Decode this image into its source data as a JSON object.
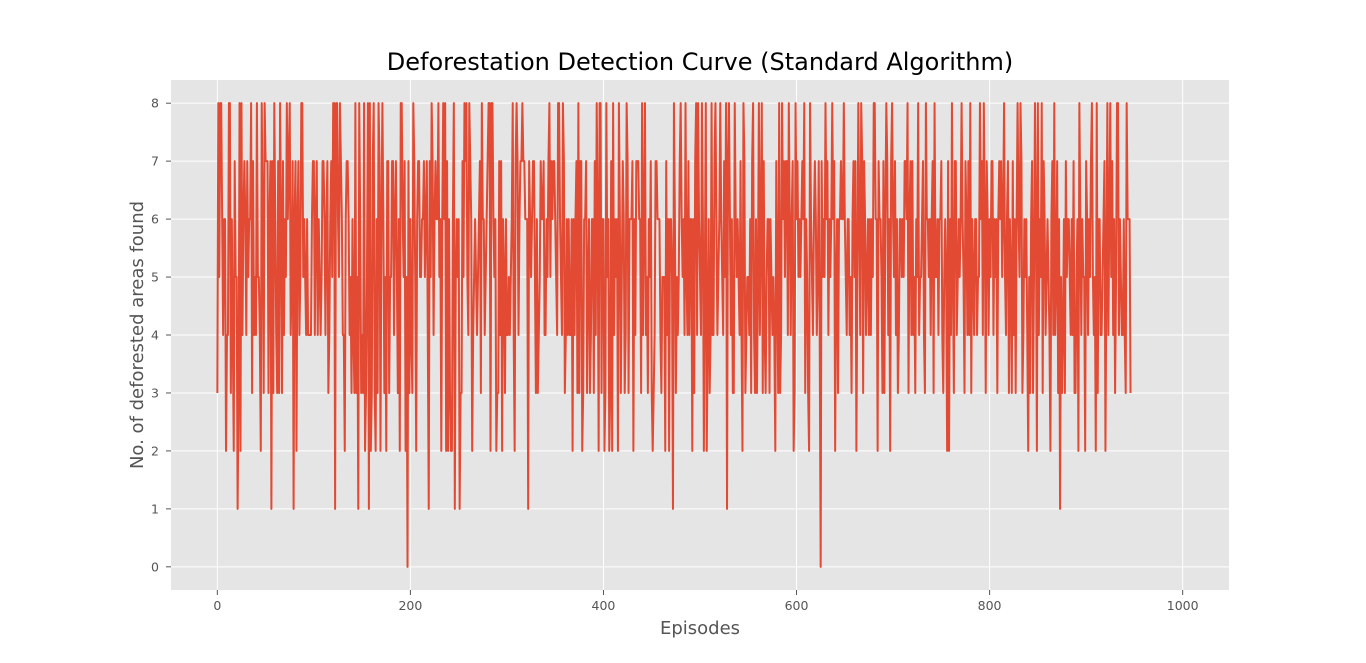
{
  "chart_data": {
    "type": "line",
    "title": "Deforestation Detection Curve (Standard Algorithm)",
    "xlabel": "Episodes",
    "ylabel": "No. of deforested areas found",
    "xlim": [
      -48,
      1048
    ],
    "ylim": [
      -0.4,
      8.4
    ],
    "xticks": [
      0,
      200,
      400,
      600,
      800,
      1000
    ],
    "xtick_labels": [
      "0",
      "200",
      "400",
      "600",
      "800",
      "1000"
    ],
    "yticks": [
      0,
      1,
      2,
      3,
      4,
      5,
      6,
      7,
      8
    ],
    "ytick_labels": [
      "0",
      "1",
      "2",
      "3",
      "4",
      "5",
      "6",
      "7",
      "8"
    ],
    "grid": true,
    "style": "ggplot",
    "series": [
      {
        "color": "#e24a33",
        "x_start": 0,
        "x_step": 1,
        "values": [
          3,
          8,
          5,
          8,
          8,
          6,
          4,
          6,
          6,
          2,
          4,
          4,
          8,
          8,
          3,
          6,
          4,
          2,
          7,
          5,
          5,
          1,
          3,
          8,
          2,
          8,
          4,
          6,
          7,
          6,
          4,
          7,
          5,
          6,
          6,
          8,
          3,
          7,
          4,
          5,
          4,
          8,
          5,
          5,
          4,
          2,
          8,
          6,
          3,
          8,
          7,
          7,
          7,
          3,
          6,
          7,
          1,
          7,
          3,
          8,
          6,
          4,
          3,
          7,
          3,
          8,
          6,
          3,
          7,
          4,
          6,
          5,
          8,
          6,
          7,
          8,
          4,
          5,
          7,
          1,
          6,
          7,
          2,
          6,
          7,
          4,
          5,
          8,
          8,
          5,
          6,
          5,
          4,
          6,
          4,
          4,
          4,
          4,
          6,
          7,
          7,
          4,
          6,
          7,
          4,
          6,
          5,
          4,
          5,
          7,
          7,
          6,
          4,
          6,
          7,
          3,
          4,
          6,
          7,
          5,
          8,
          8,
          1,
          8,
          8,
          6,
          5,
          8,
          7,
          6,
          4,
          4,
          2,
          6,
          7,
          7,
          6,
          4,
          5,
          3,
          6,
          4,
          3,
          8,
          3,
          5,
          1,
          8,
          6,
          3,
          4,
          3,
          8,
          2,
          3,
          5,
          8,
          1,
          8,
          2,
          3,
          7,
          8,
          3,
          2,
          6,
          3,
          8,
          7,
          2,
          6,
          8,
          6,
          3,
          5,
          2,
          7,
          7,
          3,
          5,
          5,
          7,
          7,
          4,
          6,
          7,
          5,
          3,
          6,
          2,
          8,
          8,
          6,
          5,
          7,
          2,
          5,
          0,
          7,
          3,
          6,
          4,
          3,
          8,
          7,
          5,
          2,
          6,
          7,
          7,
          5,
          5,
          6,
          6,
          7,
          5,
          6,
          7,
          4,
          1,
          7,
          5,
          8,
          7,
          4,
          6,
          7,
          6,
          6,
          8,
          5,
          6,
          2,
          6,
          8,
          6,
          8,
          2,
          7,
          2,
          6,
          3,
          2,
          2,
          6,
          8,
          1,
          5,
          6,
          5,
          6,
          1,
          3,
          3,
          7,
          5,
          8,
          7,
          8,
          5,
          4,
          8,
          7,
          6,
          2,
          4,
          5,
          6,
          5,
          4,
          5,
          6,
          7,
          3,
          8,
          6,
          6,
          4,
          5,
          6,
          7,
          8,
          8,
          2,
          8,
          8,
          6,
          5,
          6,
          2,
          3,
          3,
          7,
          4,
          7,
          2,
          6,
          5,
          3,
          6,
          4,
          4,
          5,
          4,
          5,
          6,
          8,
          4,
          2,
          7,
          8,
          7,
          4,
          6,
          7,
          7,
          8,
          7,
          7,
          6,
          6,
          6,
          1,
          7,
          6,
          5,
          6,
          7,
          7,
          5,
          3,
          6,
          3,
          4,
          5,
          7,
          6,
          6,
          7,
          4,
          4,
          6,
          5,
          7,
          8,
          5,
          7,
          6,
          7,
          7,
          6,
          5,
          4,
          8,
          8,
          6,
          5,
          4,
          8,
          7,
          3,
          4,
          6,
          4,
          6,
          4,
          4,
          6,
          2,
          6,
          4,
          6,
          7,
          3,
          8,
          3,
          7,
          7,
          2,
          3,
          6,
          6,
          7,
          3,
          5,
          6,
          3,
          4,
          6,
          6,
          3,
          7,
          4,
          8,
          6,
          2,
          8,
          8,
          3,
          6,
          6,
          2,
          3,
          8,
          5,
          6,
          2,
          3,
          7,
          2,
          8,
          4,
          6,
          5,
          6,
          2,
          8,
          6,
          3,
          5,
          7,
          6,
          3,
          4,
          8,
          7,
          3,
          6,
          6,
          6,
          7,
          2,
          6,
          4,
          7,
          7,
          7,
          6,
          6,
          3,
          8,
          4,
          6,
          8,
          4,
          5,
          3,
          6,
          5,
          7,
          3,
          2,
          3,
          4,
          7,
          7,
          6,
          6,
          6,
          4,
          3,
          5,
          5,
          5,
          2,
          7,
          4,
          6,
          2,
          6,
          6,
          5,
          1,
          8,
          6,
          3,
          5,
          4,
          5,
          7,
          8,
          6,
          5,
          6,
          4,
          8,
          5,
          4,
          7,
          4,
          6,
          6,
          2,
          6,
          3,
          7,
          8,
          4,
          8,
          6,
          5,
          4,
          8,
          6,
          2,
          5,
          8,
          2,
          4,
          6,
          3,
          4,
          8,
          4,
          4,
          7,
          8,
          6,
          4,
          5,
          6,
          8,
          6,
          5,
          4,
          7,
          5,
          8,
          1,
          7,
          8,
          6,
          4,
          6,
          3,
          3,
          8,
          6,
          5,
          6,
          5,
          4,
          7,
          4,
          2,
          8,
          7,
          3,
          4,
          5,
          5,
          4,
          6,
          3,
          7,
          8,
          4,
          3,
          6,
          3,
          5,
          8,
          4,
          6,
          8,
          3,
          7,
          4,
          3,
          5,
          6,
          6,
          3,
          6,
          5,
          4,
          5,
          4,
          2,
          7,
          5,
          3,
          8,
          3,
          4,
          8,
          6,
          7,
          5,
          7,
          7,
          4,
          8,
          6,
          4,
          6,
          7,
          2,
          3,
          8,
          6,
          7,
          5,
          6,
          5,
          6,
          7,
          6,
          8,
          3,
          6,
          5,
          3,
          2,
          8,
          6,
          5,
          4,
          6,
          7,
          6,
          4,
          5,
          7,
          4,
          0,
          7,
          5,
          6,
          5,
          8,
          6,
          7,
          4,
          6,
          5,
          6,
          8,
          6,
          7,
          2,
          5,
          6,
          3,
          6,
          6,
          7,
          6,
          6,
          8,
          6,
          5,
          4,
          6,
          6,
          4,
          5,
          3,
          6,
          7,
          5,
          7,
          2,
          5,
          8,
          6,
          4,
          8,
          7,
          3,
          7,
          6,
          4,
          5,
          6,
          4,
          6,
          4,
          6,
          5,
          8,
          8,
          6,
          6,
          2,
          7,
          6,
          6,
          5,
          3,
          7,
          3,
          6,
          8,
          7,
          4,
          6,
          2,
          7,
          8,
          6,
          5,
          7,
          4,
          6,
          3,
          4,
          6,
          6,
          5,
          6,
          5,
          7,
          7,
          6,
          8,
          3,
          6,
          7,
          4,
          7,
          4,
          5,
          3,
          6,
          5,
          8,
          4,
          5,
          5,
          6,
          7,
          4,
          3,
          8,
          6,
          6,
          5,
          6,
          4,
          6,
          7,
          3,
          8,
          5,
          5,
          6,
          4,
          6,
          6,
          7,
          4,
          3,
          5,
          6,
          5,
          2,
          7,
          2,
          6,
          4,
          8,
          5,
          3,
          7,
          7,
          4,
          5,
          6,
          5,
          6,
          8,
          6,
          5,
          3,
          7,
          6,
          4,
          7,
          4,
          8,
          3,
          6,
          5,
          4,
          6,
          6,
          4,
          5,
          5,
          8,
          6,
          7,
          4,
          8,
          6,
          3,
          7,
          6,
          4,
          6,
          5,
          7,
          7,
          4,
          6,
          5,
          6,
          3,
          6,
          7,
          6,
          7,
          5,
          6,
          8,
          5,
          4,
          6,
          7,
          3,
          6,
          5,
          3,
          7,
          4,
          6,
          3,
          6,
          8,
          6,
          5,
          8,
          7,
          3,
          4,
          6,
          5,
          6,
          4,
          2,
          5,
          3,
          6,
          7,
          3,
          5,
          8,
          6,
          2,
          8,
          4,
          6,
          5,
          8,
          3,
          7,
          6,
          4,
          5,
          6,
          5,
          4,
          2,
          6,
          7,
          4,
          8,
          4,
          5,
          7,
          3,
          6,
          1,
          5,
          3,
          4,
          6,
          3,
          7,
          5,
          6,
          6,
          5,
          4,
          6,
          4,
          7,
          3,
          3,
          5,
          6,
          2,
          8,
          6,
          4,
          6,
          5,
          5,
          2,
          7,
          6,
          4,
          6,
          5,
          7,
          8,
          5,
          4,
          5,
          2,
          8,
          3,
          6,
          6,
          4,
          4,
          5,
          6,
          7,
          2,
          5,
          8,
          4,
          6,
          8,
          5,
          7,
          4,
          6,
          3,
          5,
          8,
          8,
          4,
          6,
          5,
          4,
          4,
          6,
          4,
          3,
          8,
          6,
          6,
          6,
          3
        ]
      }
    ]
  }
}
